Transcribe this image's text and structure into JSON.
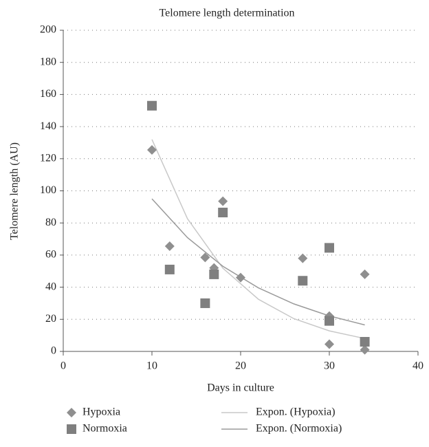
{
  "chart_data": {
    "type": "scatter",
    "title": "Telomere length determination",
    "x_label": "Days in culture",
    "y_label": "Telomere length (AU)",
    "xlim": [
      0,
      40
    ],
    "xticks": [
      0,
      10,
      20,
      30,
      40
    ],
    "ylim": [
      0,
      200
    ],
    "yticks": [
      0,
      20,
      40,
      60,
      80,
      100,
      120,
      140,
      160,
      180,
      200
    ],
    "grid": true,
    "series": [
      {
        "name": "Hypoxia",
        "color": "#8f8f8f",
        "marker": "diamond",
        "x": [
          10,
          12,
          16,
          17,
          18,
          20,
          27,
          30,
          30,
          34,
          34
        ],
        "values": [
          125.5,
          65.5,
          58.5,
          52,
          93.5,
          46,
          58,
          22,
          4.5,
          48,
          1
        ]
      },
      {
        "name": "Normoxia",
        "color": "#7f7f7f",
        "marker": "square",
        "x": [
          10,
          12,
          16,
          17,
          18,
          27,
          30,
          30,
          34
        ],
        "values": [
          153,
          51,
          30,
          48,
          86.5,
          44,
          64.5,
          19,
          6
        ]
      }
    ],
    "trendlines": [
      {
        "name": "Expon. (Hypoxia)",
        "color": "#c8c8c8",
        "x": [
          10,
          14,
          18,
          22,
          26,
          30,
          34
        ],
        "values": [
          132,
          82.7,
          51.8,
          32.5,
          20.4,
          12.8,
          8
        ]
      },
      {
        "name": "Expon. (Normoxia)",
        "color": "#9a9a9a",
        "x": [
          10,
          14,
          18,
          22,
          26,
          30,
          34
        ],
        "values": [
          95,
          70.9,
          53,
          39.6,
          29.6,
          22.1,
          16.5
        ]
      }
    ]
  }
}
